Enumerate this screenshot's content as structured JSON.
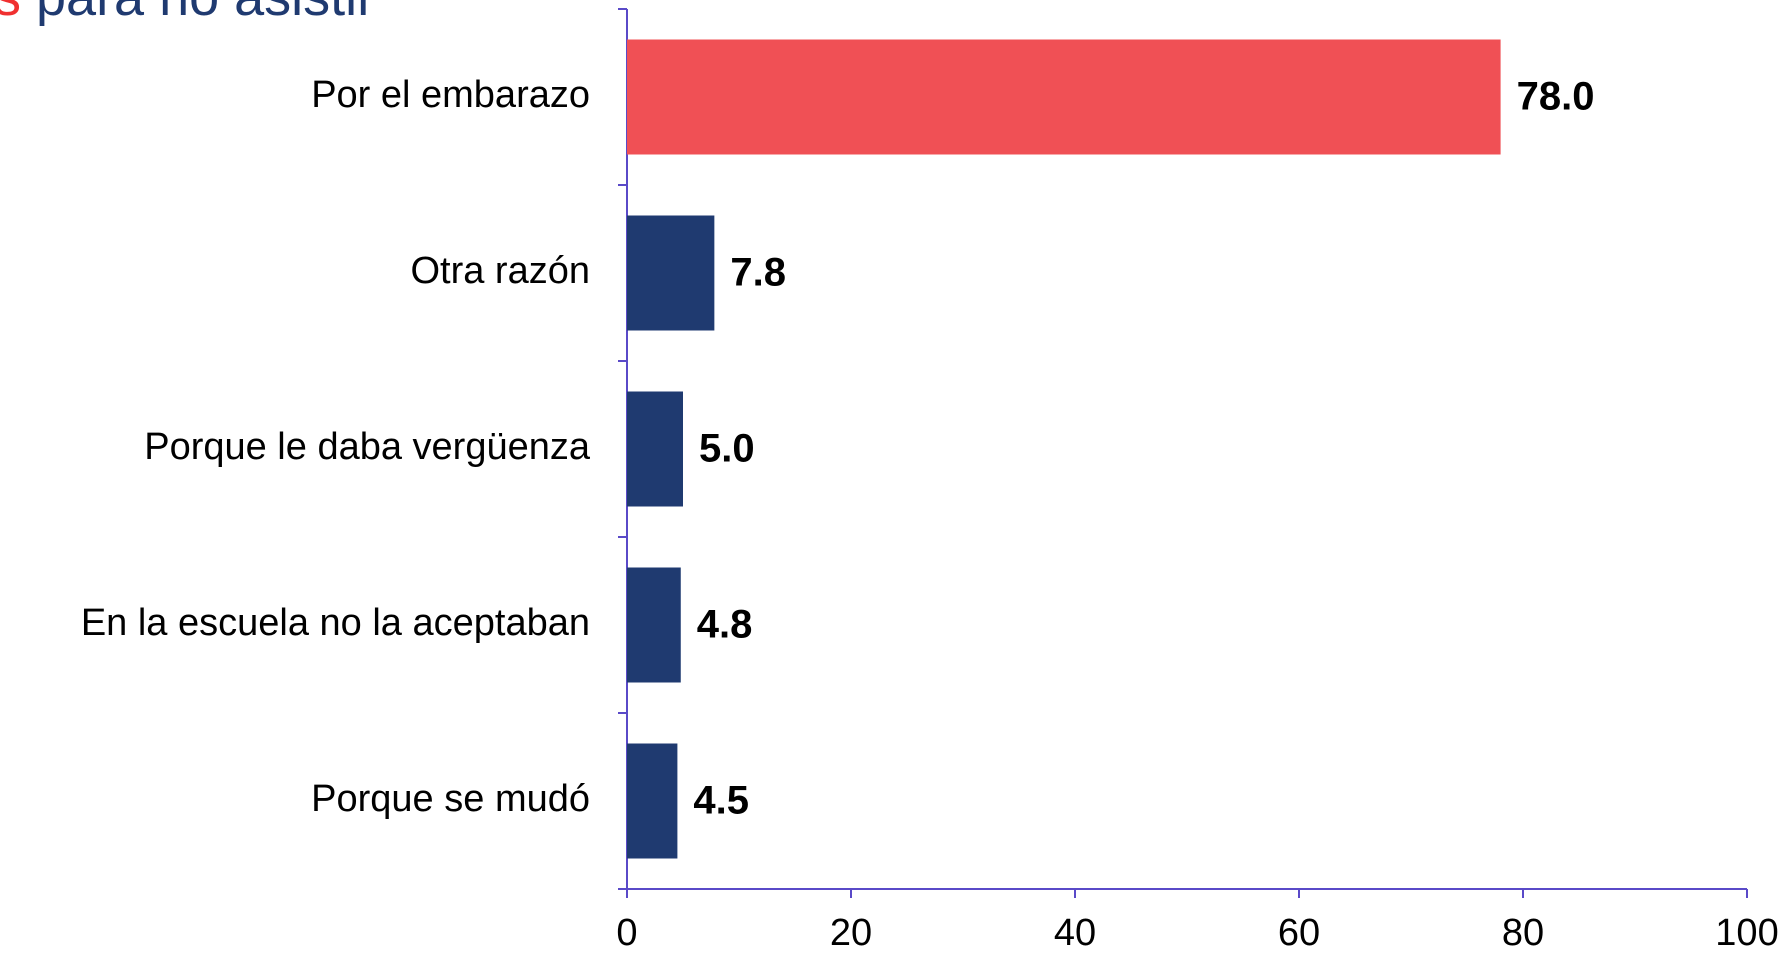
{
  "chart_data": {
    "type": "bar",
    "orientation": "horizontal",
    "title": "s para no asistir",
    "categories": [
      "Por el embarazo",
      "Otra razón",
      "Porque le daba vergüenza",
      "En la escuela no la aceptaban",
      "Porque se mudó"
    ],
    "values": [
      78,
      7.8,
      5,
      4.8,
      4.5
    ],
    "value_labels": [
      "78.0",
      "7.8",
      "5.0",
      "4.8",
      "4.5"
    ],
    "colors": [
      "#f05055",
      "#1f3a70",
      "#1f3a70",
      "#1f3a70",
      "#1f3a70"
    ],
    "xlim": [
      0,
      100
    ],
    "xticks": [
      0,
      20,
      40,
      60,
      80,
      100
    ],
    "grid": false
  }
}
